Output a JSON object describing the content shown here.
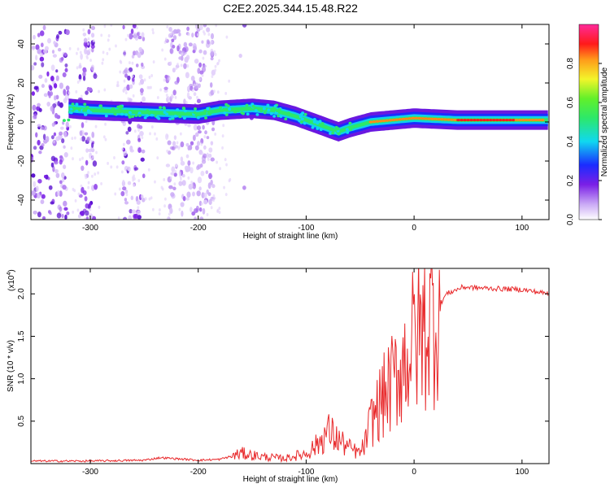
{
  "title": "C2E2.2025.344.15.48.R22",
  "chart_data": [
    {
      "type": "heatmap",
      "name": "spectrogram",
      "xlabel": "Height of straight line (km)",
      "ylabel": "Frequency (Hz)",
      "xlim": [
        -355,
        125
      ],
      "ylim": [
        -50,
        50
      ],
      "xticks": [
        "-300",
        "-200",
        "-100",
        "0",
        "100"
      ],
      "yticks": [
        "-40",
        "-20",
        "0",
        "20",
        "40"
      ],
      "colorbar": {
        "label": "Normalized spectral amplitude",
        "range": [
          0,
          1
        ],
        "ticks": [
          "0.0",
          "0.2",
          "0.4",
          "0.6",
          "0.8"
        ],
        "colormap": "rainbow (white, violet, blue, cyan, green, yellow, orange, red, magenta)"
      },
      "ridge": [
        {
          "x": -320,
          "f": 7
        },
        {
          "x": -300,
          "f": 6
        },
        {
          "x": -250,
          "f": 5
        },
        {
          "x": -200,
          "f": 4
        },
        {
          "x": -180,
          "f": 6
        },
        {
          "x": -150,
          "f": 7
        },
        {
          "x": -130,
          "f": 6
        },
        {
          "x": -110,
          "f": 3
        },
        {
          "x": -90,
          "f": -1
        },
        {
          "x": -70,
          "f": -5
        },
        {
          "x": -60,
          "f": -3
        },
        {
          "x": -40,
          "f": 0
        },
        {
          "x": -20,
          "f": 1
        },
        {
          "x": 0,
          "f": 2
        },
        {
          "x": 40,
          "f": 1
        },
        {
          "x": 80,
          "f": 1
        },
        {
          "x": 125,
          "f": 1
        }
      ]
    },
    {
      "type": "line",
      "name": "snr",
      "xlabel": "Height of straight line (km)",
      "ylabel": "SNR (10 * v/v)",
      "scale_label": "(x10",
      "scale_exp": "4",
      "scale_close": ")",
      "xlim": [
        -355,
        125
      ],
      "ylim": [
        0,
        2.3
      ],
      "xticks": [
        "-300",
        "-200",
        "-100",
        "0",
        "100"
      ],
      "yticks": [
        "0.5",
        "1.0",
        "1.5",
        "2.0"
      ],
      "color": "#e8292b",
      "series": [
        {
          "x": -355,
          "y": 0.03
        },
        {
          "x": -300,
          "y": 0.03
        },
        {
          "x": -250,
          "y": 0.04
        },
        {
          "x": -235,
          "y": 0.07
        },
        {
          "x": -200,
          "y": 0.04
        },
        {
          "x": -180,
          "y": 0.05
        },
        {
          "x": -160,
          "y": 0.12
        },
        {
          "x": -140,
          "y": 0.08
        },
        {
          "x": -120,
          "y": 0.06
        },
        {
          "x": -100,
          "y": 0.12
        },
        {
          "x": -90,
          "y": 0.22
        },
        {
          "x": -80,
          "y": 0.38
        },
        {
          "x": -70,
          "y": 0.28
        },
        {
          "x": -60,
          "y": 0.18
        },
        {
          "x": -50,
          "y": 0.12
        },
        {
          "x": -45,
          "y": 0.25
        },
        {
          "x": -40,
          "y": 0.5
        },
        {
          "x": -30,
          "y": 0.75
        },
        {
          "x": -20,
          "y": 0.95
        },
        {
          "x": -10,
          "y": 1.2
        },
        {
          "x": 0,
          "y": 1.45
        },
        {
          "x": 10,
          "y": 1.6
        },
        {
          "x": 20,
          "y": 1.8
        },
        {
          "x": 30,
          "y": 2.0
        },
        {
          "x": 45,
          "y": 2.08
        },
        {
          "x": 60,
          "y": 2.07
        },
        {
          "x": 80,
          "y": 2.06
        },
        {
          "x": 100,
          "y": 2.05
        },
        {
          "x": 115,
          "y": 2.02
        },
        {
          "x": 125,
          "y": 2.0
        }
      ]
    }
  ]
}
